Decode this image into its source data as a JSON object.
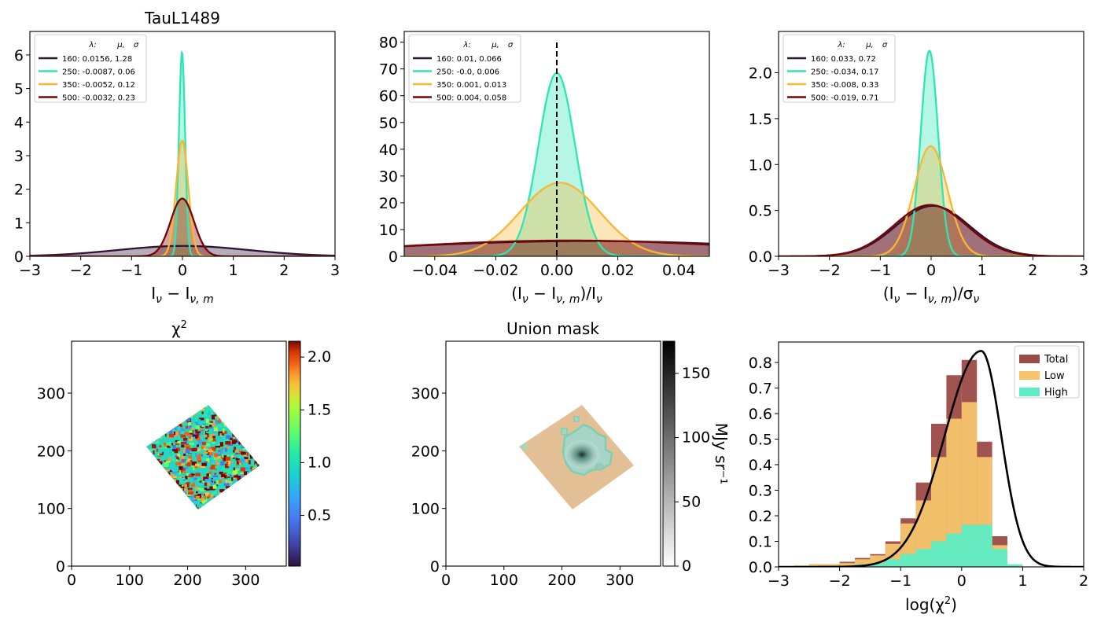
{
  "chart_data": [
    {
      "type": "line",
      "title": "TauL1489",
      "xlabel": "I_ν − I_ν,m",
      "ylabel": "",
      "xlim": [
        -3,
        3
      ],
      "ylim": [
        0,
        6.7
      ],
      "xticks": [
        "−3",
        "−2",
        "−1",
        "0",
        "1",
        "2",
        "3"
      ],
      "yticks": [
        "0",
        "1",
        "2",
        "3",
        "4",
        "5",
        "6"
      ],
      "legend_header": [
        "λ:",
        "μ,",
        "σ"
      ],
      "legend_position": "upper left",
      "series": [
        {
          "name": "160: 0.0156,  1.28",
          "mu": 0.0156,
          "sigma": 1.28,
          "peak": 0.31,
          "color": "#2d1438"
        },
        {
          "name": "250: -0.0087,  0.06",
          "mu": -0.0087,
          "sigma": 0.06,
          "peak": 6.1,
          "color": "#2ee6b4"
        },
        {
          "name": "350: -0.0052,  0.12",
          "mu": -0.0052,
          "sigma": 0.12,
          "peak": 3.45,
          "color": "#f9b634"
        },
        {
          "name": "500: -0.0032,  0.23",
          "mu": -0.0032,
          "sigma": 0.23,
          "peak": 1.72,
          "color": "#7a0403"
        }
      ]
    },
    {
      "type": "line",
      "title": "",
      "xlabel": "(I_ν − I_ν,m)/I_ν",
      "ylabel": "",
      "xlim": [
        -0.05,
        0.05
      ],
      "ylim": [
        0,
        84
      ],
      "xticks": [
        "−0.04",
        "−0.02",
        "0.00",
        "0.02",
        "0.04"
      ],
      "yticks": [
        "0",
        "10",
        "20",
        "30",
        "40",
        "50",
        "60",
        "70",
        "80"
      ],
      "vline_x": 0,
      "legend_header": [
        "λ:",
        "μ,",
        "σ"
      ],
      "legend_position": "upper left",
      "series": [
        {
          "name": "160: 0.01,  0.066",
          "mu": 0.01,
          "sigma": 0.066,
          "peak": 5.7,
          "color": "#2d1438"
        },
        {
          "name": "250: -0.0,  0.006",
          "mu": 0.0,
          "sigma": 0.006,
          "peak": 68.5,
          "color": "#2ee6b4"
        },
        {
          "name": "350: 0.001,  0.013",
          "mu": 0.001,
          "sigma": 0.013,
          "peak": 27.5,
          "color": "#f9b634"
        },
        {
          "name": "500: 0.004,  0.058",
          "mu": 0.004,
          "sigma": 0.058,
          "peak": 5.9,
          "color": "#7a0403"
        }
      ]
    },
    {
      "type": "line",
      "title": "",
      "xlabel": "(I_ν − I_ν,m)/σ_ν",
      "ylabel": "",
      "xlim": [
        -3,
        3
      ],
      "ylim": [
        0,
        2.45
      ],
      "xticks": [
        "−3",
        "−2",
        "−1",
        "0",
        "1",
        "2",
        "3"
      ],
      "yticks": [
        "0.0",
        "0.5",
        "1.0",
        "1.5",
        "2.0"
      ],
      "legend_header": [
        "λ:",
        "μ,",
        "σ"
      ],
      "legend_position": "upper left",
      "series": [
        {
          "name": "160: 0.033,  0.72",
          "mu": 0.033,
          "sigma": 0.72,
          "peak": 0.55,
          "color": "#2d1438"
        },
        {
          "name": "250: -0.034,  0.17",
          "mu": -0.034,
          "sigma": 0.17,
          "peak": 2.24,
          "color": "#2ee6b4"
        },
        {
          "name": "350: -0.008,  0.33",
          "mu": -0.008,
          "sigma": 0.33,
          "peak": 1.2,
          "color": "#f9b634"
        },
        {
          "name": "500: -0.019,  0.71",
          "mu": -0.019,
          "sigma": 0.71,
          "peak": 0.56,
          "color": "#7a0403"
        }
      ]
    },
    {
      "type": "heatmap",
      "title": "χ²",
      "xlim": [
        0,
        370
      ],
      "ylim": [
        0,
        390
      ],
      "xticks": [
        "0",
        "100",
        "200",
        "300"
      ],
      "yticks": [
        "0",
        "100",
        "200",
        "300"
      ],
      "colorbar": {
        "range": [
          0.02,
          2.15
        ],
        "ticks": [
          "0.5",
          "1.0",
          "1.5",
          "2.0"
        ],
        "colormap": "turbo"
      }
    },
    {
      "type": "heatmap",
      "title": "Union mask",
      "xlim": [
        0,
        370
      ],
      "ylim": [
        0,
        390
      ],
      "xticks": [
        "0",
        "100",
        "200",
        "300"
      ],
      "yticks": [
        "0",
        "100",
        "200",
        "300"
      ],
      "colorbar": {
        "range": [
          0,
          175
        ],
        "ticks": [
          "0",
          "50",
          "100",
          "150"
        ],
        "colormap": "gray_r",
        "label": "MJy sr⁻¹"
      }
    },
    {
      "type": "bar",
      "title": "",
      "xlabel": "log(χ²)",
      "ylabel": "",
      "xlim": [
        -3,
        2
      ],
      "ylim": [
        0,
        0.88
      ],
      "xticks": [
        "−3",
        "−2",
        "−1",
        "0",
        "1",
        "2"
      ],
      "yticks": [
        "0.0",
        "0.1",
        "0.2",
        "0.3",
        "0.4",
        "0.5",
        "0.6",
        "0.7",
        "0.8"
      ],
      "bin_edges": [
        -3.0,
        -2.75,
        -2.5,
        -2.25,
        -2.0,
        -1.75,
        -1.5,
        -1.25,
        -1.0,
        -0.75,
        -0.5,
        -0.25,
        0.0,
        0.25,
        0.5,
        0.75,
        1.0,
        1.25,
        1.5,
        1.75,
        2.0
      ],
      "legend_position": "upper right",
      "series": [
        {
          "name": "Total",
          "color": "#9c4a47",
          "values": [
            0.0,
            0.005,
            0.01,
            0.01,
            0.02,
            0.035,
            0.05,
            0.1,
            0.19,
            0.33,
            0.56,
            0.75,
            0.81,
            0.49,
            0.12,
            0.0,
            0.0,
            0.0,
            0.0,
            0.0
          ]
        },
        {
          "name": "Low",
          "color": "#f5c46b",
          "values": [
            0.0,
            0.005,
            0.01,
            0.01,
            0.015,
            0.03,
            0.045,
            0.09,
            0.17,
            0.26,
            0.43,
            0.58,
            0.645,
            0.43,
            0.085,
            0.0,
            0.0,
            0.0,
            0.0,
            0.0
          ]
        },
        {
          "name": "High",
          "color": "#5eecc4",
          "values": [
            0.0,
            0.0,
            0.0,
            0.0,
            0.005,
            0.01,
            0.015,
            0.03,
            0.05,
            0.07,
            0.1,
            0.13,
            0.165,
            0.165,
            0.07,
            0.01,
            0.0,
            0.0,
            0.0,
            0.0
          ]
        }
      ],
      "curve": {
        "mu": 0.32,
        "sigma": 0.33,
        "sigma_left": 0.6,
        "peak": 0.845,
        "color": "#000000"
      }
    }
  ]
}
